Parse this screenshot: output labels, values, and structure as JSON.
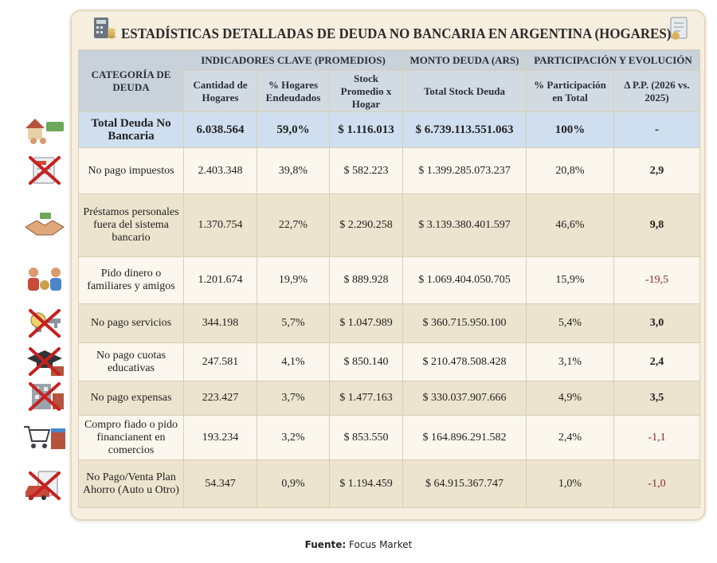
{
  "title": "ESTADÍSTICAS DETALLADAS DE DEUDA NO BANCARIA EN ARGENTINA (HOGARES)",
  "title_icons": [
    "calculator-coins-icon",
    "document-coin-icon"
  ],
  "headers": {
    "category": "CATEGORÍA DE DEUDA",
    "groups": [
      "INDICADORES CLAVE (PROMEDIOS)",
      "MONTO DEUDA (ARS)",
      "PARTICIPACIÓN Y EVOLUCIÓN"
    ],
    "columns": [
      "Cantidad de Hogares",
      "% Hogares Endeudados",
      "Stock Promedio x Hogar",
      "Total Stock Deuda",
      "% Participación en Total",
      "Δ P.P. (2026 vs. 2025)"
    ]
  },
  "total_row": {
    "category": "Total Deuda No Bancaria",
    "hogares": "6.038.564",
    "pct_hogares": "59,0%",
    "stock_promedio": "$ 1.116.013",
    "total_stock": "$ 6.739.113.551.063",
    "participacion": "100%",
    "delta": "-",
    "icon": "house-family-money-icon"
  },
  "rows": [
    {
      "category": "No pago impuestos",
      "hogares": "2.403.348",
      "pct_hogares": "39,8%",
      "stock_promedio": "$ 582.223",
      "total_stock": "$ 1.399.285.073.237",
      "participacion": "20,8%",
      "delta": "2,9",
      "icon": "tax-document-crossed-icon"
    },
    {
      "category": "Préstamos personales fuera del sistema bancario",
      "hogares": "1.370.754",
      "pct_hogares": "22,7%",
      "stock_promedio": "$ 2.290.258",
      "total_stock": "$ 3.139.380.401.597",
      "participacion": "46,6%",
      "delta": "9,8",
      "icon": "handshake-money-icon"
    },
    {
      "category": "Pido dinero o familiares y amigos",
      "hogares": "1.201.674",
      "pct_hogares": "19,9%",
      "stock_promedio": "$ 889.928",
      "total_stock": "$ 1.069.404.050.705",
      "participacion": "15,9%",
      "delta": "-19,5",
      "icon": "people-money-bag-icon"
    },
    {
      "category": "No pago servicios",
      "hogares": "344.198",
      "pct_hogares": "5,7%",
      "stock_promedio": "$ 1.047.989",
      "total_stock": "$ 360.715.950.100",
      "participacion": "5,4%",
      "delta": "3,0",
      "icon": "bulb-faucet-crossed-icon"
    },
    {
      "category": "No pago cuotas educativas",
      "hogares": "247.581",
      "pct_hogares": "4,1%",
      "stock_promedio": "$ 850.140",
      "total_stock": "$ 210.478.508.428",
      "participacion": "3,1%",
      "delta": "2,4",
      "icon": "graduation-cap-crossed-icon"
    },
    {
      "category": "No pago expensas",
      "hogares": "223.427",
      "pct_hogares": "3,7%",
      "stock_promedio": "$ 1.477.163",
      "total_stock": "$ 330.037.907.666",
      "participacion": "4,9%",
      "delta": "3,5",
      "icon": "building-crossed-icon"
    },
    {
      "category": "Compro fiado o pido financianent en comercios",
      "hogares": "193.234",
      "pct_hogares": "3,2%",
      "stock_promedio": "$ 853.550",
      "total_stock": "$ 164.896.291.582",
      "participacion": "2,4%",
      "delta": "-1,1",
      "icon": "shopping-cart-store-icon"
    },
    {
      "category": "No Pago/Venta Plan Ahorro (Auto u Otro)",
      "hogares": "54.347",
      "pct_hogares": "0,9%",
      "stock_promedio": "$ 1.194.459",
      "total_stock": "$ 64.915.367.747",
      "participacion": "1,0%",
      "delta": "-1,0",
      "icon": "car-document-crossed-icon"
    }
  ],
  "source": {
    "label": "Fuente:",
    "value": "Focus Market"
  },
  "colors": {
    "header": "#c9d2da",
    "total_row": "#cfdff0",
    "card": "#f6efdf",
    "negative": "#8b2a2a"
  }
}
